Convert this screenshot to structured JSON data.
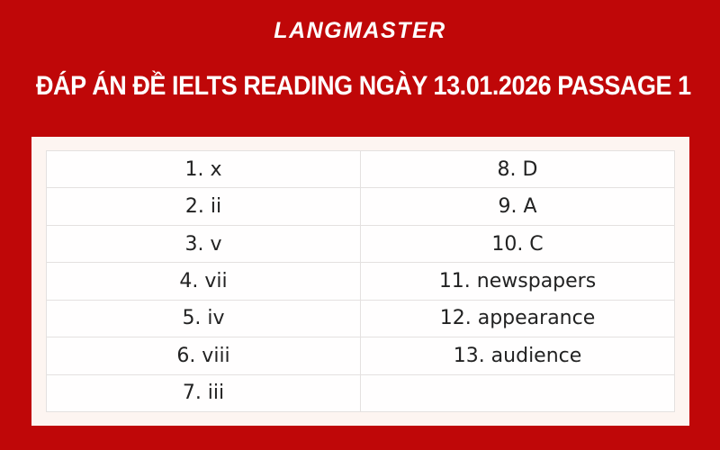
{
  "brand": {
    "logo_text": "LANGMASTER"
  },
  "header": {
    "title": "ĐÁP ÁN ĐỀ IELTS READING NGÀY 13.01.2026 PASSAGE 1"
  },
  "colors": {
    "background_red": "#bf0708",
    "card_background": "#fdf5f1",
    "table_background": "#fffefe",
    "table_border": "#e4e1e0",
    "table_text": "#222222",
    "title_text": "#ffffff"
  },
  "answers_table": {
    "rows": [
      {
        "left": "1. x",
        "right": "8. D"
      },
      {
        "left": "2. ii",
        "right": "9. A"
      },
      {
        "left": "3. v",
        "right": "10. C"
      },
      {
        "left": "4. vii",
        "right": "11. newspapers"
      },
      {
        "left": "5. iv",
        "right": "12. appearance"
      },
      {
        "left": "6. viii",
        "right": "13. audience"
      },
      {
        "left": "7. iii",
        "right": ""
      }
    ]
  }
}
